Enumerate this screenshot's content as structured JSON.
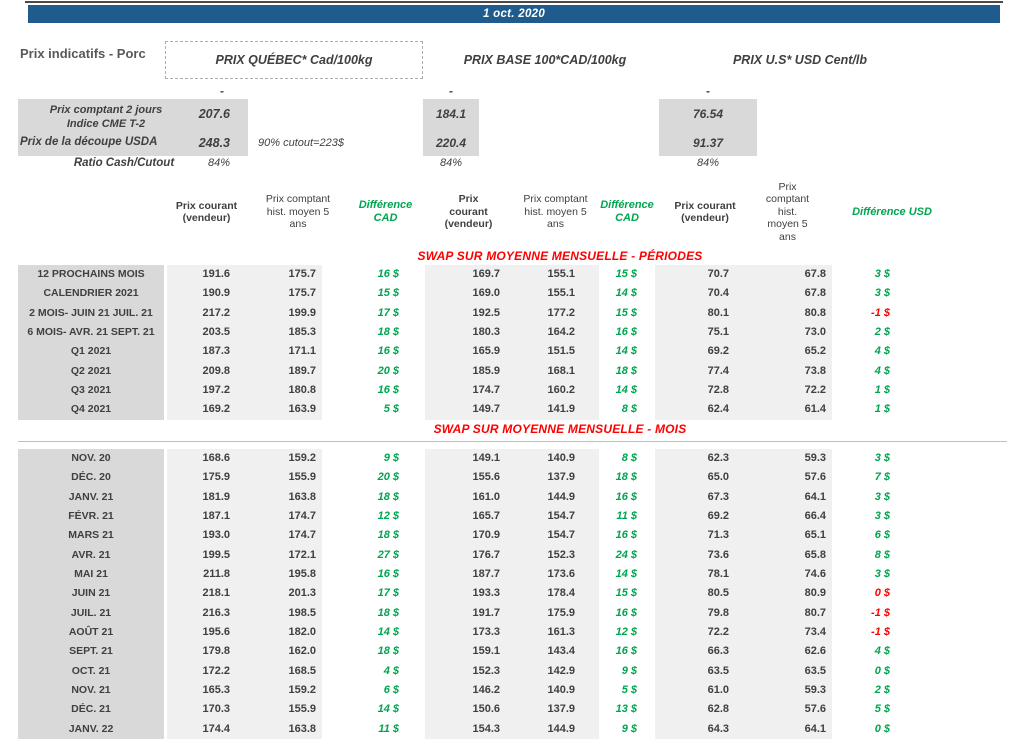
{
  "banner": {
    "date": "1 oct. 2020"
  },
  "title": "Prix indicatifs - Porc",
  "group_headers": [
    {
      "label": "PRIX QUÉBEC* Cad/100kg"
    },
    {
      "label": "PRIX BASE 100*CAD/100kg"
    },
    {
      "label": "PRIX U.S* USD Cent/lb"
    }
  ],
  "summary": {
    "placeholder_dash": "-",
    "row1_label_line1": "Prix comptant 2 jours",
    "row1_label_line2": "Indice CME T-2",
    "row1_values": {
      "qc": "207.6",
      "base": "184.1",
      "us": "76.54"
    },
    "row2_label": "Prix de la découpe USDA",
    "row2_note": "90% cutout=223$",
    "row2_values": {
      "qc": "248.3",
      "base": "220.4",
      "us": "91.37"
    },
    "row3_label": "Ratio Cash/Cutout",
    "row3_values": {
      "qc": "84%",
      "base": "84%",
      "us": "84%"
    }
  },
  "columns": {
    "current": "Prix courant (vendeur)",
    "hist": "Prix comptant hist. moyen 5 ans",
    "diff_cad": "Différence CAD",
    "diff_usd": "Différence USD"
  },
  "sections": [
    {
      "title": "SWAP SUR MOYENNE MENSUELLE - PÉRIODES",
      "rows": [
        {
          "label": "12 PROCHAINS MOIS",
          "v": [
            "191.6",
            "175.7",
            "169.7",
            "155.1",
            "70.7",
            "67.8"
          ],
          "d": [
            "16 $",
            "15 $",
            "3 $"
          ],
          "dc": [
            "g",
            "g",
            "g"
          ]
        },
        {
          "label": "CALENDRIER 2021",
          "v": [
            "190.9",
            "175.7",
            "169.0",
            "155.1",
            "70.4",
            "67.8"
          ],
          "d": [
            "15 $",
            "14 $",
            "3 $"
          ],
          "dc": [
            "g",
            "g",
            "g"
          ]
        },
        {
          "label": "2 MOIS- JUIN 21 JUIL. 21",
          "v": [
            "217.2",
            "199.9",
            "192.5",
            "177.2",
            "80.1",
            "80.8"
          ],
          "d": [
            "17 $",
            "15 $",
            "-1 $"
          ],
          "dc": [
            "g",
            "g",
            "r"
          ]
        },
        {
          "label": "6 MOIS- AVR. 21 SEPT. 21",
          "v": [
            "203.5",
            "185.3",
            "180.3",
            "164.2",
            "75.1",
            "73.0"
          ],
          "d": [
            "18 $",
            "16 $",
            "2 $"
          ],
          "dc": [
            "g",
            "g",
            "g"
          ]
        },
        {
          "label": "Q1 2021",
          "v": [
            "187.3",
            "171.1",
            "165.9",
            "151.5",
            "69.2",
            "65.2"
          ],
          "d": [
            "16 $",
            "14 $",
            "4 $"
          ],
          "dc": [
            "g",
            "g",
            "g"
          ]
        },
        {
          "label": "Q2 2021",
          "v": [
            "209.8",
            "189.7",
            "185.9",
            "168.1",
            "77.4",
            "73.8"
          ],
          "d": [
            "20 $",
            "18 $",
            "4 $"
          ],
          "dc": [
            "g",
            "g",
            "g"
          ]
        },
        {
          "label": "Q3 2021",
          "v": [
            "197.2",
            "180.8",
            "174.7",
            "160.2",
            "72.8",
            "72.2"
          ],
          "d": [
            "16 $",
            "14 $",
            "1 $"
          ],
          "dc": [
            "g",
            "g",
            "g"
          ]
        },
        {
          "label": "Q4 2021",
          "v": [
            "169.2",
            "163.9",
            "149.7",
            "141.9",
            "62.4",
            "61.4"
          ],
          "d": [
            "5 $",
            "8 $",
            "1 $"
          ],
          "dc": [
            "g",
            "g",
            "g"
          ]
        }
      ]
    },
    {
      "title": "SWAP SUR MOYENNE MENSUELLE - MOIS",
      "rows": [
        {
          "label": "NOV. 20",
          "v": [
            "168.6",
            "159.2",
            "149.1",
            "140.9",
            "62.3",
            "59.3"
          ],
          "d": [
            "9 $",
            "8 $",
            "3 $"
          ],
          "dc": [
            "g",
            "g",
            "g"
          ]
        },
        {
          "label": "DÉC. 20",
          "v": [
            "175.9",
            "155.9",
            "155.6",
            "137.9",
            "65.0",
            "57.6"
          ],
          "d": [
            "20 $",
            "18 $",
            "7 $"
          ],
          "dc": [
            "g",
            "g",
            "g"
          ]
        },
        {
          "label": "JANV. 21",
          "v": [
            "181.9",
            "163.8",
            "161.0",
            "144.9",
            "67.3",
            "64.1"
          ],
          "d": [
            "18 $",
            "16 $",
            "3 $"
          ],
          "dc": [
            "g",
            "g",
            "g"
          ]
        },
        {
          "label": "FÉVR. 21",
          "v": [
            "187.1",
            "174.7",
            "165.7",
            "154.7",
            "69.2",
            "66.4"
          ],
          "d": [
            "12 $",
            "11 $",
            "3 $"
          ],
          "dc": [
            "g",
            "g",
            "g"
          ]
        },
        {
          "label": "MARS 21",
          "v": [
            "193.0",
            "174.7",
            "170.9",
            "154.7",
            "71.3",
            "65.1"
          ],
          "d": [
            "18 $",
            "16 $",
            "6 $"
          ],
          "dc": [
            "g",
            "g",
            "g"
          ]
        },
        {
          "label": "AVR. 21",
          "v": [
            "199.5",
            "172.1",
            "176.7",
            "152.3",
            "73.6",
            "65.8"
          ],
          "d": [
            "27 $",
            "24 $",
            "8 $"
          ],
          "dc": [
            "g",
            "g",
            "g"
          ]
        },
        {
          "label": "MAI 21",
          "v": [
            "211.8",
            "195.8",
            "187.7",
            "173.6",
            "78.1",
            "74.6"
          ],
          "d": [
            "16 $",
            "14 $",
            "3 $"
          ],
          "dc": [
            "g",
            "g",
            "g"
          ]
        },
        {
          "label": "JUIN 21",
          "v": [
            "218.1",
            "201.3",
            "193.3",
            "178.4",
            "80.5",
            "80.9"
          ],
          "d": [
            "17 $",
            "15 $",
            "0 $"
          ],
          "dc": [
            "g",
            "g",
            "r"
          ]
        },
        {
          "label": "JUIL. 21",
          "v": [
            "216.3",
            "198.5",
            "191.7",
            "175.9",
            "79.8",
            "80.7"
          ],
          "d": [
            "18 $",
            "16 $",
            "-1 $"
          ],
          "dc": [
            "g",
            "g",
            "r"
          ]
        },
        {
          "label": "AOÛT 21",
          "v": [
            "195.6",
            "182.0",
            "173.3",
            "161.3",
            "72.2",
            "73.4"
          ],
          "d": [
            "14 $",
            "12 $",
            "-1 $"
          ],
          "dc": [
            "g",
            "g",
            "r"
          ]
        },
        {
          "label": "SEPT. 21",
          "v": [
            "179.8",
            "162.0",
            "159.1",
            "143.4",
            "66.3",
            "62.6"
          ],
          "d": [
            "18 $",
            "16 $",
            "4 $"
          ],
          "dc": [
            "g",
            "g",
            "g"
          ]
        },
        {
          "label": "OCT. 21",
          "v": [
            "172.2",
            "168.5",
            "152.3",
            "142.9",
            "63.5",
            "63.5"
          ],
          "d": [
            "4 $",
            "9 $",
            "0 $"
          ],
          "dc": [
            "g",
            "g",
            "g"
          ]
        },
        {
          "label": "NOV. 21",
          "v": [
            "165.3",
            "159.2",
            "146.2",
            "140.9",
            "61.0",
            "59.3"
          ],
          "d": [
            "6 $",
            "5 $",
            "2 $"
          ],
          "dc": [
            "g",
            "g",
            "g"
          ]
        },
        {
          "label": "DÉC. 21",
          "v": [
            "170.3",
            "155.9",
            "150.6",
            "137.9",
            "62.8",
            "57.6"
          ],
          "d": [
            "14 $",
            "13 $",
            "5 $"
          ],
          "dc": [
            "g",
            "g",
            "g"
          ]
        },
        {
          "label": "JANV. 22",
          "v": [
            "174.4",
            "163.8",
            "154.3",
            "144.9",
            "64.3",
            "64.1"
          ],
          "d": [
            "11 $",
            "9 $",
            "0 $"
          ],
          "dc": [
            "g",
            "g",
            "g"
          ]
        }
      ]
    }
  ],
  "colors": {
    "banner_blue": "#1F5C8D",
    "diff_positive_green": "#00A550",
    "diff_negative_red": "#FF0000",
    "label_band_gray": "#D9D9D9",
    "value_band_gray": "#F0F0F0"
  }
}
